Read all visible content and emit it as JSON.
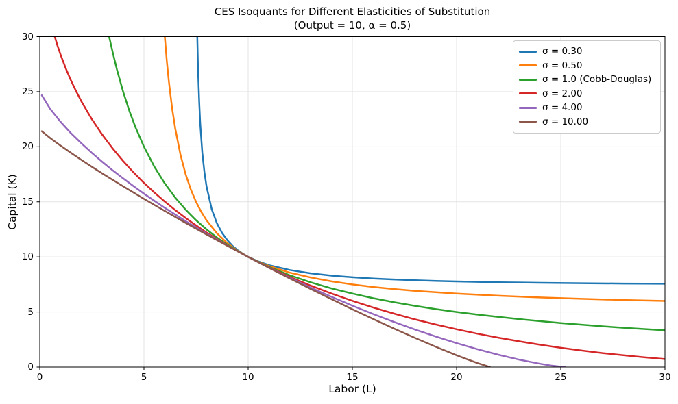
{
  "chart_data": {
    "type": "line",
    "title": "CES Isoquants for Different Elasticities of Substitution",
    "subtitle": "(Output = 10, α = 0.5)",
    "xlabel": "Labor (L)",
    "ylabel": "Capital (K)",
    "xlim": [
      0,
      30
    ],
    "ylim": [
      0,
      30
    ],
    "xticks": [
      0,
      5,
      10,
      15,
      20,
      25,
      30
    ],
    "yticks": [
      0,
      5,
      10,
      15,
      20,
      25,
      30
    ],
    "grid": true,
    "grid_color": "#e3e3e3",
    "spine_color": "#000000",
    "legend_position": "upper right",
    "output": 10,
    "alpha": 0.5,
    "series": [
      {
        "name": "σ = 0.30",
        "sigma": 0.3,
        "color": "#1f77b4",
        "points": [
          [
            7.53,
            33.8
          ],
          [
            7.56,
            30.0
          ],
          [
            7.6,
            26.85
          ],
          [
            7.65,
            24.07
          ],
          [
            7.7,
            22.08
          ],
          [
            7.8,
            19.46
          ],
          [
            7.9,
            17.7
          ],
          [
            8,
            16.43
          ],
          [
            8.25,
            14.34
          ],
          [
            8.5,
            13.06
          ],
          [
            8.75,
            12.17
          ],
          [
            9,
            11.52
          ],
          [
            9.25,
            11.0
          ],
          [
            9.5,
            10.61
          ],
          [
            9.75,
            10.28
          ],
          [
            10,
            10
          ],
          [
            10.5,
            9.58
          ],
          [
            11,
            9.25
          ],
          [
            12,
            8.81
          ],
          [
            13,
            8.51
          ],
          [
            14,
            8.3
          ],
          [
            15,
            8.15
          ],
          [
            16,
            8.04
          ],
          [
            17,
            7.95
          ],
          [
            18,
            7.88
          ],
          [
            19,
            7.82
          ],
          [
            20,
            7.77
          ],
          [
            22,
            7.7
          ],
          [
            24,
            7.65
          ],
          [
            26,
            7.61
          ],
          [
            28,
            7.58
          ],
          [
            30,
            7.56
          ]
        ]
      },
      {
        "name": "σ = 0.50",
        "sigma": 0.5,
        "color": "#ff7f0e",
        "points": [
          [
            5.92,
            32.17
          ],
          [
            6,
            30
          ],
          [
            6.1,
            27.73
          ],
          [
            6.2,
            25.83
          ],
          [
            6.35,
            23.52
          ],
          [
            6.5,
            21.67
          ],
          [
            6.75,
            19.29
          ],
          [
            7,
            17.5
          ],
          [
            7.25,
            16.11
          ],
          [
            7.5,
            15
          ],
          [
            7.75,
            14.09
          ],
          [
            8,
            13.33
          ],
          [
            8.5,
            12.14
          ],
          [
            9,
            11.25
          ],
          [
            9.5,
            10.56
          ],
          [
            10,
            10
          ],
          [
            10.5,
            9.55
          ],
          [
            11,
            9.17
          ],
          [
            12,
            8.57
          ],
          [
            13,
            8.13
          ],
          [
            14,
            7.78
          ],
          [
            15,
            7.5
          ],
          [
            16,
            7.27
          ],
          [
            17,
            7.08
          ],
          [
            18,
            6.92
          ],
          [
            19,
            6.79
          ],
          [
            20,
            6.67
          ],
          [
            22,
            6.47
          ],
          [
            24,
            6.32
          ],
          [
            26,
            6.19
          ],
          [
            28,
            6.09
          ],
          [
            30,
            6.0
          ]
        ]
      },
      {
        "name": "σ = 1.0 (Cobb-Douglas)",
        "sigma": 1.0,
        "color": "#2ca02c",
        "points": [
          [
            3.2,
            31.25
          ],
          [
            3.33,
            30
          ],
          [
            3.5,
            28.57
          ],
          [
            3.7,
            27.03
          ],
          [
            4,
            25
          ],
          [
            4.3,
            23.26
          ],
          [
            4.6,
            21.74
          ],
          [
            5,
            20
          ],
          [
            5.5,
            18.18
          ],
          [
            6,
            16.67
          ],
          [
            6.5,
            15.38
          ],
          [
            7,
            14.29
          ],
          [
            7.5,
            13.33
          ],
          [
            8,
            12.5
          ],
          [
            8.5,
            11.76
          ],
          [
            9,
            11.11
          ],
          [
            9.5,
            10.53
          ],
          [
            10,
            10
          ],
          [
            11,
            9.09
          ],
          [
            12,
            8.33
          ],
          [
            13,
            7.69
          ],
          [
            14,
            7.14
          ],
          [
            15,
            6.67
          ],
          [
            16,
            6.25
          ],
          [
            17,
            5.88
          ],
          [
            18,
            5.56
          ],
          [
            19,
            5.26
          ],
          [
            20,
            5
          ],
          [
            21,
            4.76
          ],
          [
            22,
            4.55
          ],
          [
            23,
            4.35
          ],
          [
            24,
            4.17
          ],
          [
            25,
            4
          ],
          [
            26,
            3.85
          ],
          [
            27,
            3.7
          ],
          [
            28,
            3.57
          ],
          [
            29,
            3.45
          ],
          [
            30,
            3.33
          ]
        ]
      },
      {
        "name": "σ = 2.00",
        "sigma": 2.0,
        "color": "#d62728",
        "points": [
          [
            0.6,
            30.8
          ],
          [
            0.72,
            30
          ],
          [
            0.85,
            29.19
          ],
          [
            1,
            28.35
          ],
          [
            1.25,
            27.11
          ],
          [
            1.5,
            26.01
          ],
          [
            1.75,
            25.02
          ],
          [
            2,
            24.11
          ],
          [
            2.5,
            22.5
          ],
          [
            3,
            21.09
          ],
          [
            3.5,
            19.84
          ],
          [
            4,
            18.7
          ],
          [
            4.5,
            17.67
          ],
          [
            5,
            16.72
          ],
          [
            5.5,
            15.84
          ],
          [
            6,
            15.02
          ],
          [
            6.5,
            14.25
          ],
          [
            7,
            13.53
          ],
          [
            7.5,
            12.86
          ],
          [
            8,
            12.22
          ],
          [
            8.5,
            11.62
          ],
          [
            9,
            11.05
          ],
          [
            9.5,
            10.51
          ],
          [
            10,
            10
          ],
          [
            11,
            9.05
          ],
          [
            12,
            8.18
          ],
          [
            13,
            7.39
          ],
          [
            14,
            6.67
          ],
          [
            15,
            6.01
          ],
          [
            16,
            5.4
          ],
          [
            17,
            4.85
          ],
          [
            18,
            4.33
          ],
          [
            19,
            3.86
          ],
          [
            20,
            3.43
          ],
          [
            21,
            3.03
          ],
          [
            22,
            2.67
          ],
          [
            23,
            2.34
          ],
          [
            24,
            2.03
          ],
          [
            25,
            1.75
          ],
          [
            26,
            1.5
          ],
          [
            27,
            1.27
          ],
          [
            28,
            1.07
          ],
          [
            29,
            0.88
          ],
          [
            30,
            0.72
          ]
        ]
      },
      {
        "name": "σ = 4.00",
        "sigma": 4.0,
        "color": "#9467bd",
        "points": [
          [
            0.1,
            24.67
          ],
          [
            0.5,
            23.44
          ],
          [
            1,
            22.26
          ],
          [
            1.5,
            21.23
          ],
          [
            2,
            20.31
          ],
          [
            2.5,
            19.44
          ],
          [
            3,
            18.63
          ],
          [
            3.5,
            17.86
          ],
          [
            4,
            17.13
          ],
          [
            4.5,
            16.42
          ],
          [
            5,
            15.74
          ],
          [
            5.5,
            15.09
          ],
          [
            6,
            14.45
          ],
          [
            7,
            13.25
          ],
          [
            8,
            12.11
          ],
          [
            9,
            11.03
          ],
          [
            10,
            10
          ],
          [
            11,
            9.02
          ],
          [
            12,
            8.1
          ],
          [
            13,
            7.21
          ],
          [
            14,
            6.37
          ],
          [
            15,
            5.57
          ],
          [
            16,
            4.81
          ],
          [
            17,
            4.09
          ],
          [
            18,
            3.41
          ],
          [
            19,
            2.77
          ],
          [
            20,
            2.17
          ],
          [
            21,
            1.62
          ],
          [
            22,
            1.12
          ],
          [
            23,
            0.67
          ],
          [
            24,
            0.3
          ],
          [
            24.5,
            0.14
          ],
          [
            25,
            0.03
          ],
          [
            25.2,
            0
          ]
        ]
      },
      {
        "name": "σ = 10.00",
        "sigma": 10.0,
        "color": "#8c564b",
        "points": [
          [
            0.1,
            21.41
          ],
          [
            0.5,
            20.79
          ],
          [
            1,
            20.1
          ],
          [
            1.5,
            19.44
          ],
          [
            2,
            18.8
          ],
          [
            2.5,
            18.18
          ],
          [
            3,
            17.58
          ],
          [
            3.5,
            16.99
          ],
          [
            4,
            16.41
          ],
          [
            4.5,
            15.84
          ],
          [
            5,
            15.27
          ],
          [
            5.5,
            14.72
          ],
          [
            6,
            14.17
          ],
          [
            7,
            13.09
          ],
          [
            8,
            12.04
          ],
          [
            9,
            11.01
          ],
          [
            10,
            10
          ],
          [
            11,
            9.01
          ],
          [
            12,
            8.04
          ],
          [
            13,
            7.09
          ],
          [
            14,
            6.16
          ],
          [
            15,
            5.25
          ],
          [
            16,
            4.36
          ],
          [
            17,
            3.49
          ],
          [
            18,
            2.65
          ],
          [
            19,
            1.84
          ],
          [
            20,
            1.07
          ],
          [
            20.5,
            0.71
          ],
          [
            21,
            0.36
          ],
          [
            21.6,
            0
          ]
        ]
      }
    ]
  }
}
